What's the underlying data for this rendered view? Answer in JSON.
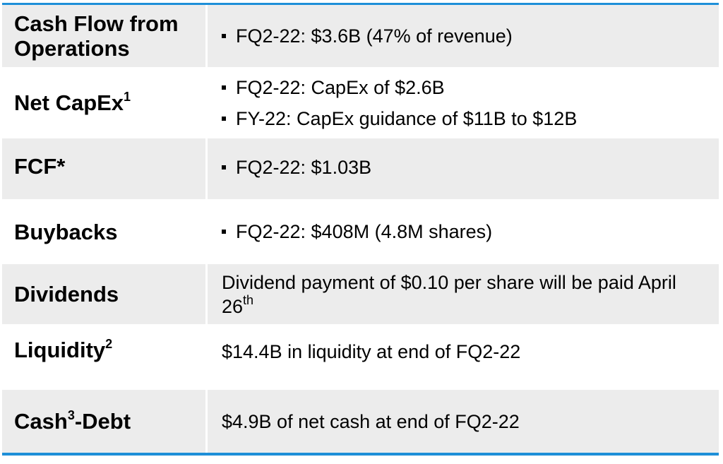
{
  "colors": {
    "accent_border": "#1e8fd8",
    "row_shade": "#ececec"
  },
  "rows": [
    {
      "label": "Cash Flow from Operations",
      "bullets": [
        "FQ2-22: $3.6B (47% of revenue)"
      ]
    },
    {
      "label": "Net CapEx",
      "label_sup": "1",
      "bullets": [
        "FQ2-22: CapEx of $2.6B",
        "FY-22: CapEx guidance of $11B to $12B"
      ]
    },
    {
      "label": "FCF*",
      "bullets": [
        "FQ2-22: $1.03B"
      ]
    },
    {
      "label": "Buybacks",
      "bullets": [
        "FQ2-22: $408M (4.8M shares)"
      ]
    },
    {
      "label": "Dividends",
      "text": "Dividend payment of $0.10 per share will be paid April 26",
      "text_sup": "th"
    },
    {
      "label": "Liquidity",
      "label_sup": "2",
      "text": "$14.4B in liquidity at end of FQ2-22"
    },
    {
      "label": "Cash",
      "label_sup": "3",
      "label_suffix": "-Debt",
      "text": "$4.9B of net cash at end of FQ2-22"
    }
  ]
}
